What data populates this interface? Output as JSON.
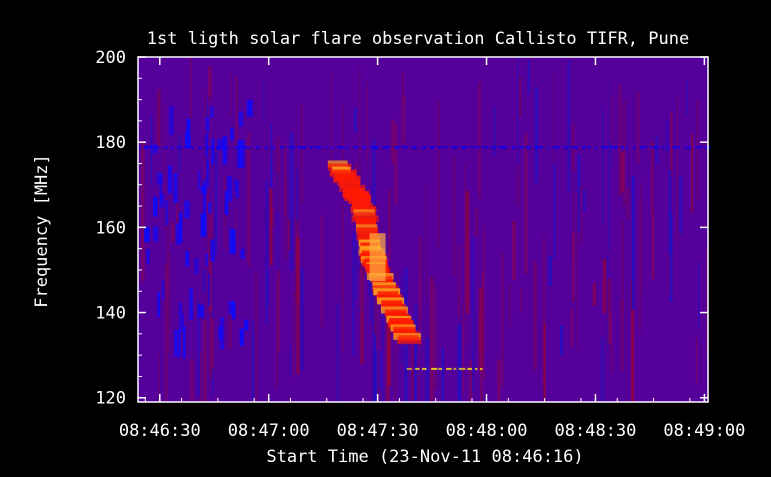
{
  "chart_data": {
    "type": "heatmap",
    "title": "1st ligth solar flare observation Callisto TIFR, Pune",
    "xlabel": "Start Time (23-Nov-11 08:46:16)",
    "ylabel": "Frequency [MHz]",
    "x_unit": "seconds after 08:46:16",
    "xlim": [
      8,
      165
    ],
    "ylim": [
      200,
      119
    ],
    "x_ticks": [
      {
        "label": "08:46:30",
        "value": 14
      },
      {
        "label": "08:47:00",
        "value": 44
      },
      {
        "label": "08:47:30",
        "value": 74
      },
      {
        "label": "08:48:00",
        "value": 104
      },
      {
        "label": "08:48:30",
        "value": 134
      },
      {
        "label": "08:49:00",
        "value": 164
      }
    ],
    "y_ticks": [
      {
        "label": "120",
        "value": 120
      },
      {
        "label": "140",
        "value": 140
      },
      {
        "label": "160",
        "value": 160
      },
      {
        "label": "180",
        "value": 180
      },
      {
        "label": "200",
        "value": 200
      }
    ],
    "colormap": [
      "#000000",
      "#0000ff",
      "#ff0000",
      "#ffff00",
      "#ffffff"
    ],
    "background_color": "#000000",
    "plot_background": "#55009a",
    "burst": {
      "description": "drifting emission band",
      "path": [
        {
          "t": 63,
          "f": 175
        },
        {
          "t": 70,
          "f": 165
        },
        {
          "t": 72,
          "f": 155
        },
        {
          "t": 74,
          "f": 150
        },
        {
          "t": 79,
          "f": 140
        },
        {
          "t": 83,
          "f": 133
        }
      ],
      "peak": {
        "t": 74,
        "f": 153
      }
    },
    "features": [
      {
        "name": "early-bright-patch",
        "t": [
          10,
          12
        ],
        "f": [
          120,
          127
        ],
        "color": "#ffff00"
      },
      {
        "name": "early-dark-patch",
        "t": [
          35,
          40
        ],
        "f": [
          120,
          127
        ],
        "color": "#000000"
      },
      {
        "name": "rfi-band-128",
        "t": [
          82,
          103
        ],
        "f": [
          127,
          130
        ],
        "color": "#ffff00"
      },
      {
        "name": "early-orange-lines",
        "t": [
          8,
          20
        ],
        "f": [
          157,
          167
        ],
        "color": "#ff9900"
      },
      {
        "name": "blue-stripe-180",
        "t": [
          8,
          165
        ],
        "f": [
          179,
          182
        ],
        "color": "#0000ff"
      }
    ]
  }
}
